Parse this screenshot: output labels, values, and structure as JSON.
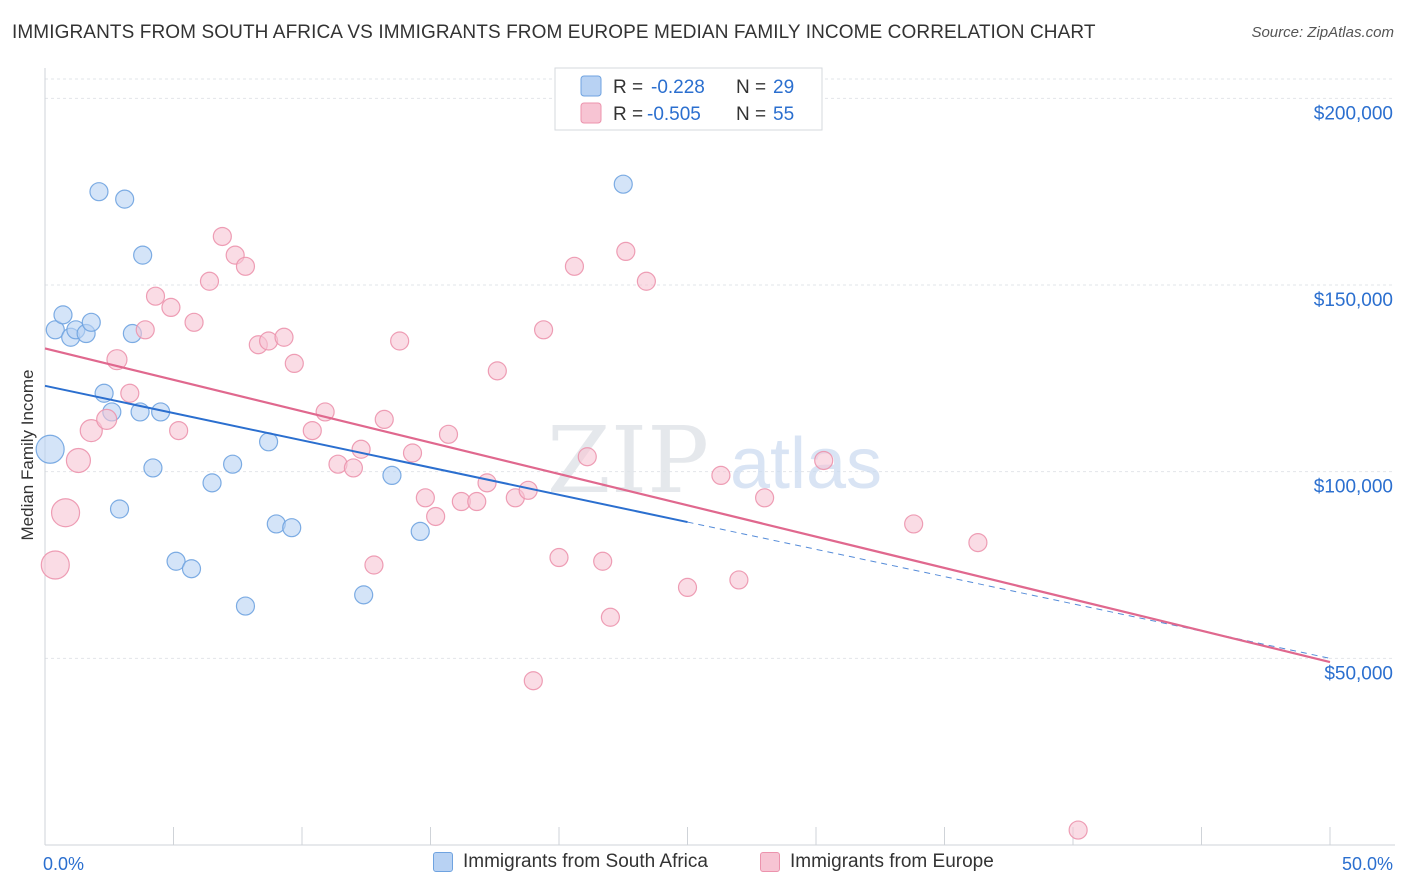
{
  "header": {
    "title": "IMMIGRANTS FROM SOUTH AFRICA VS IMMIGRANTS FROM EUROPE MEDIAN FAMILY INCOME CORRELATION CHART",
    "source": "Source: ZipAtlas.com"
  },
  "watermark": {
    "zip": "ZIP",
    "atlas": "atlas"
  },
  "legend_top": {
    "rows": [
      {
        "r_label": "R =",
        "r_value": "-0.228",
        "n_label": "N =",
        "n_value": "29",
        "color": "#a9c8f0"
      },
      {
        "r_label": "R =",
        "r_value": "-0.505",
        "n_label": "N =",
        "n_value": "55",
        "color": "#f5b6c8"
      }
    ]
  },
  "legend_bottom": [
    {
      "label": "Immigrants from South Africa",
      "color": "#a9c8f0"
    },
    {
      "label": "Immigrants from Europe",
      "color": "#f5b6c8"
    }
  ],
  "chart_data": {
    "type": "scatter",
    "ylabel": "Median Family Income",
    "xlabel": "",
    "xlim": [
      0,
      50
    ],
    "ylim": [
      0,
      210000
    ],
    "x_tick_labels": [
      "0.0%",
      "50.0%"
    ],
    "y_ticks": [
      50000,
      100000,
      150000,
      200000
    ],
    "y_tick_labels": [
      "$50,000",
      "$100,000",
      "$150,000",
      "$200,000"
    ],
    "grid": true,
    "legend_position": "top-center",
    "colors": {
      "south_africa": "#6fa3e0",
      "south_africa_fill": "#b8d2f3",
      "south_africa_line": "#2b6fcf",
      "europe": "#ec93ad",
      "europe_fill": "#f7c4d3",
      "europe_line": "#e0688e",
      "value_text": "#2b6fcf"
    },
    "series": [
      {
        "name": "Immigrants from South Africa",
        "points": [
          [
            0.2,
            106000,
            28
          ],
          [
            0.4,
            138000,
            18
          ],
          [
            0.7,
            142000,
            18
          ],
          [
            1.0,
            136000,
            18
          ],
          [
            1.2,
            138000,
            18
          ],
          [
            1.6,
            137000,
            18
          ],
          [
            1.8,
            140000,
            18
          ],
          [
            2.1,
            175000,
            18
          ],
          [
            2.3,
            121000,
            18
          ],
          [
            2.6,
            116000,
            18
          ],
          [
            2.9,
            90000,
            18
          ],
          [
            3.1,
            173000,
            18
          ],
          [
            3.4,
            137000,
            18
          ],
          [
            3.8,
            158000,
            18
          ],
          [
            3.7,
            116000,
            18
          ],
          [
            4.2,
            101000,
            18
          ],
          [
            4.5,
            116000,
            18
          ],
          [
            5.1,
            76000,
            18
          ],
          [
            5.7,
            74000,
            18
          ],
          [
            6.5,
            97000,
            18
          ],
          [
            7.3,
            102000,
            18
          ],
          [
            7.8,
            64000,
            18
          ],
          [
            8.7,
            108000,
            18
          ],
          [
            9.0,
            86000,
            18
          ],
          [
            9.6,
            85000,
            18
          ],
          [
            12.4,
            67000,
            18
          ],
          [
            13.5,
            99000,
            18
          ],
          [
            14.6,
            84000,
            18
          ],
          [
            22.5,
            177000,
            18
          ]
        ]
      },
      {
        "name": "Immigrants from Europe",
        "points": [
          [
            0.4,
            75000,
            28
          ],
          [
            0.8,
            89000,
            28
          ],
          [
            1.3,
            103000,
            24
          ],
          [
            1.8,
            111000,
            22
          ],
          [
            2.4,
            114000,
            20
          ],
          [
            2.8,
            130000,
            20
          ],
          [
            3.3,
            121000,
            18
          ],
          [
            3.9,
            138000,
            18
          ],
          [
            4.3,
            147000,
            18
          ],
          [
            4.9,
            144000,
            18
          ],
          [
            5.2,
            111000,
            18
          ],
          [
            5.8,
            140000,
            18
          ],
          [
            6.4,
            151000,
            18
          ],
          [
            6.9,
            163000,
            18
          ],
          [
            7.4,
            158000,
            18
          ],
          [
            7.8,
            155000,
            18
          ],
          [
            8.3,
            134000,
            18
          ],
          [
            8.7,
            135000,
            18
          ],
          [
            9.3,
            136000,
            18
          ],
          [
            9.7,
            129000,
            18
          ],
          [
            10.4,
            111000,
            18
          ],
          [
            10.9,
            116000,
            18
          ],
          [
            11.4,
            102000,
            18
          ],
          [
            12.0,
            101000,
            18
          ],
          [
            12.3,
            106000,
            18
          ],
          [
            12.8,
            75000,
            18
          ],
          [
            13.2,
            114000,
            18
          ],
          [
            13.8,
            135000,
            18
          ],
          [
            14.3,
            105000,
            18
          ],
          [
            14.8,
            93000,
            18
          ],
          [
            15.2,
            88000,
            18
          ],
          [
            15.7,
            110000,
            18
          ],
          [
            16.2,
            92000,
            18
          ],
          [
            16.8,
            92000,
            18
          ],
          [
            17.2,
            97000,
            18
          ],
          [
            17.6,
            127000,
            18
          ],
          [
            18.3,
            93000,
            18
          ],
          [
            18.8,
            95000,
            18
          ],
          [
            19.4,
            138000,
            18
          ],
          [
            20.0,
            77000,
            18
          ],
          [
            20.6,
            155000,
            18
          ],
          [
            21.1,
            104000,
            18
          ],
          [
            21.7,
            76000,
            18
          ],
          [
            22.0,
            61000,
            18
          ],
          [
            22.6,
            159000,
            18
          ],
          [
            23.4,
            151000,
            18
          ],
          [
            19.0,
            44000,
            18
          ],
          [
            25.0,
            69000,
            18
          ],
          [
            26.3,
            99000,
            18
          ],
          [
            27.0,
            71000,
            18
          ],
          [
            28.0,
            93000,
            18
          ],
          [
            30.3,
            103000,
            18
          ],
          [
            33.8,
            86000,
            18
          ],
          [
            36.3,
            81000,
            18
          ],
          [
            40.2,
            4000,
            18
          ]
        ]
      }
    ],
    "trend_lines": [
      {
        "name": "Immigrants from South Africa",
        "x0": 0,
        "y0": 123000,
        "x1": 25,
        "y1": 86500,
        "dash_to_x": 50,
        "dash_to_y": 50000
      },
      {
        "name": "Immigrants from Europe",
        "x0": 0,
        "y0": 133000,
        "x1": 50,
        "y1": 49000
      }
    ]
  }
}
